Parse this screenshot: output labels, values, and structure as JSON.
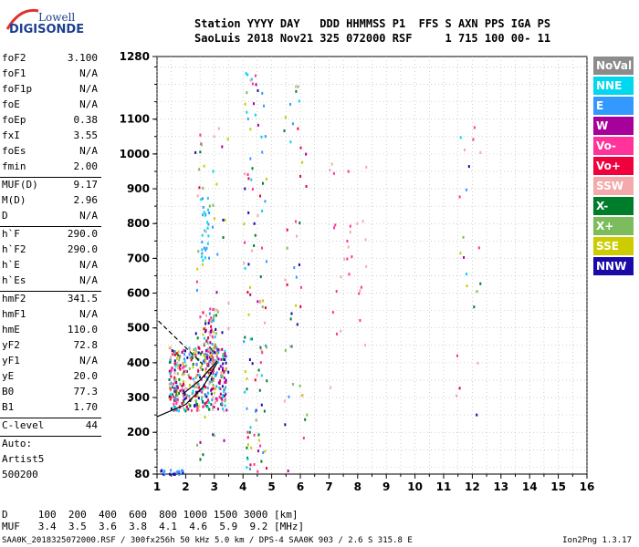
{
  "logo": {
    "line1": "Lowell",
    "line2": "DIGISONDE"
  },
  "header": {
    "line1": "Station YYYY DAY   DDD HHMMSS P1  FFS S AXN PPS IGA PS",
    "line2": "SaoLuis 2018 Nov21 325 072000 RSF     1 715 100 00- 11"
  },
  "params": {
    "g1": [
      {
        "k": "foF2",
        "v": "3.100"
      },
      {
        "k": "foF1",
        "v": "N/A"
      },
      {
        "k": "foF1p",
        "v": "N/A"
      },
      {
        "k": "foE",
        "v": "N/A"
      },
      {
        "k": "foEp",
        "v": "0.38"
      },
      {
        "k": "fxI",
        "v": "3.55"
      },
      {
        "k": "foEs",
        "v": "N/A"
      },
      {
        "k": "fmin",
        "v": "2.00"
      }
    ],
    "g2": [
      {
        "k": "MUF(D)",
        "v": "9.17"
      },
      {
        "k": "M(D)",
        "v": "2.96"
      },
      {
        "k": "D",
        "v": "N/A"
      }
    ],
    "g3": [
      {
        "k": "h`F",
        "v": "290.0"
      },
      {
        "k": "h`F2",
        "v": "290.0"
      },
      {
        "k": "h`E",
        "v": "N/A"
      },
      {
        "k": "h`Es",
        "v": "N/A"
      }
    ],
    "g4": [
      {
        "k": "hmF2",
        "v": "341.5"
      },
      {
        "k": "hmF1",
        "v": "N/A"
      },
      {
        "k": "hmE",
        "v": "110.0"
      },
      {
        "k": "yF2",
        "v": "72.8"
      },
      {
        "k": "yF1",
        "v": "N/A"
      },
      {
        "k": "yE",
        "v": "20.0"
      },
      {
        "k": "B0",
        "v": "77.3"
      },
      {
        "k": "B1",
        "v": "1.70"
      }
    ],
    "g5": [
      {
        "k": "C-level",
        "v": "44"
      }
    ],
    "g6": [
      "Auto:",
      "Artist5",
      "500200"
    ]
  },
  "legend": [
    {
      "label": "NoVal",
      "color": "#8c8c8c"
    },
    {
      "label": "NNE",
      "color": "#00d8f0"
    },
    {
      "label": "E",
      "color": "#3399ff"
    },
    {
      "label": "W",
      "color": "#a8009a"
    },
    {
      "label": "Vo-",
      "color": "#ff3399"
    },
    {
      "label": "Vo+",
      "color": "#f0003c"
    },
    {
      "label": "SSW",
      "color": "#f4aaaa"
    },
    {
      "label": "X-",
      "color": "#007d2a"
    },
    {
      "label": "X+",
      "color": "#7cbc5c"
    },
    {
      "label": "SSE",
      "color": "#cccc00"
    },
    {
      "label": "NNW",
      "color": "#1a0aa8"
    }
  ],
  "muf": {
    "line1": "D     100  200  400  600  800 1000 1500 3000 [km]",
    "line2": "MUF   3.4  3.5  3.6  3.8  4.1  4.6  5.9  9.2 [MHz]"
  },
  "footer": "SAA0K_2018325072000.RSF / 300fx256h 50 kHz 5.0 km / DPS-4 SAA0K 903 / 2.6 S 315.8 E",
  "version": "Ion2Png 1.3.17",
  "chart_data": {
    "type": "scatter",
    "x_ticks": [
      "1",
      "2",
      "3",
      "4",
      "5",
      "6",
      "7",
      "8",
      "9",
      "10",
      "11",
      "12",
      "13",
      "14",
      "15",
      "16"
    ],
    "y_ticks": [
      "80",
      "200",
      "300",
      "400",
      "500",
      "600",
      "700",
      "800",
      "900",
      "1000",
      "1100",
      "1280"
    ],
    "xlim": [
      1,
      16
    ],
    "ylim": [
      80,
      1280
    ],
    "grid": true,
    "legend_position": "right",
    "clusters": [
      {
        "x": [
          1.4,
          3.4
        ],
        "y": [
          265,
          450
        ],
        "n": 420,
        "palette": "mix"
      },
      {
        "x": [
          2.6,
          3.1
        ],
        "y": [
          400,
          560
        ],
        "n": 80,
        "palette": "mix"
      },
      {
        "x": [
          4.0,
          4.8
        ],
        "y": [
          90,
          1280
        ],
        "n": 110,
        "palette": "mix"
      },
      {
        "x": [
          2.5,
          2.8
        ],
        "y": [
          650,
          880
        ],
        "n": 25,
        "palette": "cyan"
      },
      {
        "x": [
          1.1,
          1.9
        ],
        "y": [
          82,
          95
        ],
        "n": 20,
        "palette": "navy"
      },
      {
        "x": [
          5.4,
          6.2
        ],
        "y": [
          90,
          1200
        ],
        "n": 45,
        "palette": "mix"
      },
      {
        "x": [
          7.0,
          8.3
        ],
        "y": [
          280,
          1000
        ],
        "n": 30,
        "palette": "pink"
      },
      {
        "x": [
          11.4,
          12.3
        ],
        "y": [
          150,
          1100
        ],
        "n": 22,
        "palette": "mix"
      },
      {
        "x": [
          2.3,
          3.5
        ],
        "y": [
          120,
          1150
        ],
        "n": 60,
        "palette": "mix"
      }
    ],
    "trace_solid": {
      "x": [
        1.0,
        2.0,
        2.6,
        3.1
      ],
      "y": [
        245,
        280,
        330,
        400
      ]
    },
    "trace_solid2": {
      "x": [
        1.9,
        2.5,
        3.1
      ],
      "y": [
        310,
        350,
        405
      ]
    },
    "trace_dashed": {
      "x": [
        1.05,
        1.8,
        2.6
      ],
      "y": [
        520,
        460,
        395
      ]
    }
  }
}
